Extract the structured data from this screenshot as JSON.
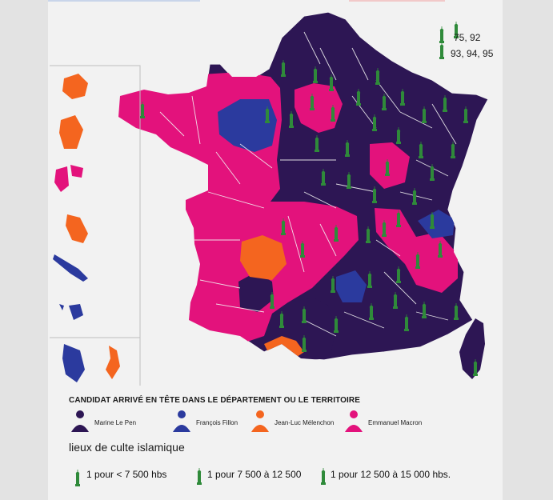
{
  "colors": {
    "le_pen": "#2d1654",
    "fillon": "#2b3a9e",
    "melenchon": "#f4651f",
    "macron": "#e3127c",
    "mosque_icon": "#2f8a3a",
    "background": "#f2f2f2"
  },
  "top_legend": {
    "line1": "75, 92",
    "line2": "93, 94, 95"
  },
  "legend": {
    "title": "CANDIDAT ARRIVÉ EN TÊTE DANS LE DÉPARTEMENT OU LE TERRITOIRE",
    "candidates": [
      {
        "name": "Marine Le Pen",
        "color": "#2d1654",
        "icon": "person-icon"
      },
      {
        "name": "François Fillon",
        "color": "#2b3a9e",
        "icon": "person-icon"
      },
      {
        "name": "Jean-Luc Mélenchon",
        "color": "#f4651f",
        "icon": "person-icon"
      },
      {
        "name": "Emmanuel Macron",
        "color": "#e3127c",
        "icon": "person-icon"
      }
    ]
  },
  "worship_legend": {
    "title": "lieux de culte islamique",
    "items": [
      {
        "label": "1 pour < 7 500 hbs",
        "icon": "mosque-large-icon"
      },
      {
        "label": "1 pour 7 500 à 12 500",
        "icon": "mosque-medium-icon"
      },
      {
        "label": "1 pour 12 500 à 15 000 hbs.",
        "icon": "mosque-small-icon"
      }
    ]
  }
}
